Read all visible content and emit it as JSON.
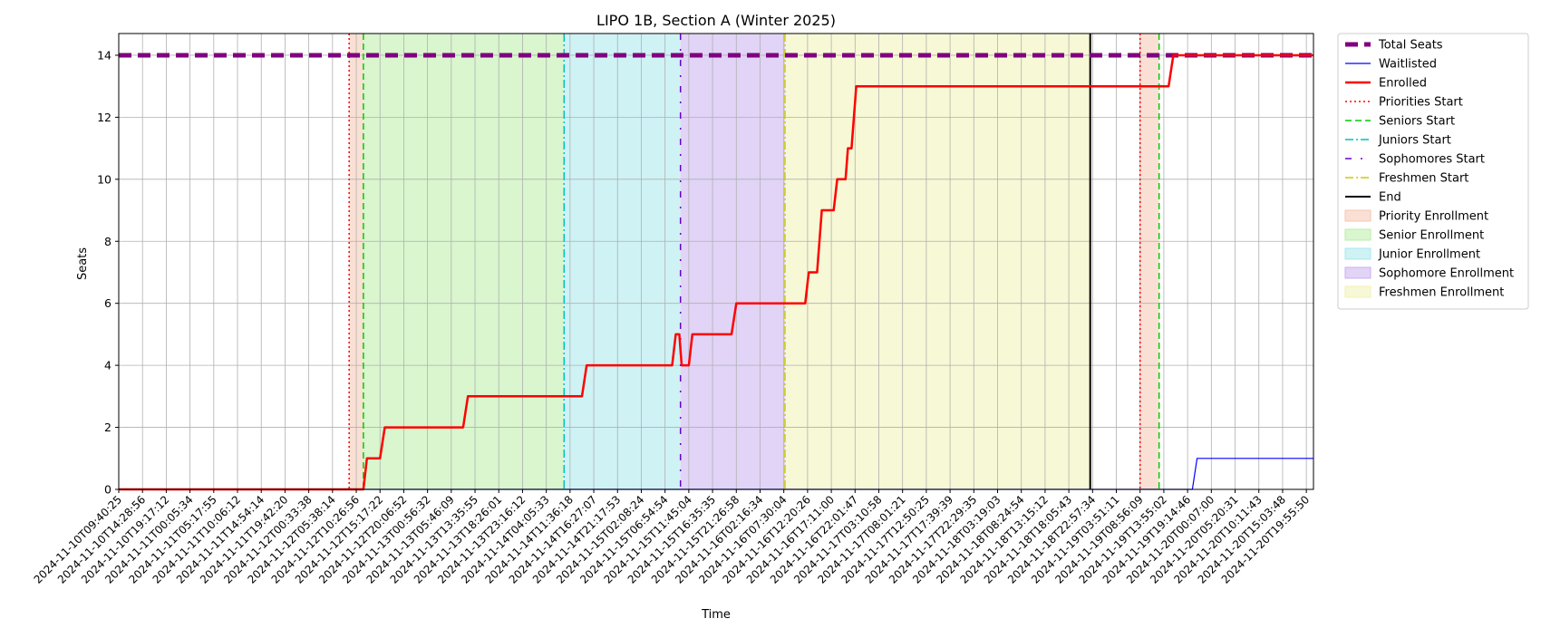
{
  "chart_data": {
    "type": "line",
    "title": "LIPO 1B, Section A (Winter 2025)",
    "xlabel": "Time",
    "ylabel": "Seats",
    "ylim": [
      0,
      14.7
    ],
    "yticks": [
      0,
      2,
      4,
      6,
      8,
      10,
      12,
      14
    ],
    "grid": true,
    "legend_position": "outside-right-top",
    "xticks": [
      "2024-11-10T09:40:25",
      "2024-11-10T14:28:56",
      "2024-11-10T19:17:12",
      "2024-11-11T00:05:34",
      "2024-11-11T05:17:55",
      "2024-11-11T10:06:12",
      "2024-11-11T14:54:14",
      "2024-11-11T19:42:20",
      "2024-11-12T00:33:38",
      "2024-11-12T05:38:14",
      "2024-11-12T10:26:56",
      "2024-11-12T15:17:22",
      "2024-11-12T20:06:52",
      "2024-11-13T00:56:32",
      "2024-11-13T05:46:09",
      "2024-11-13T13:35:55",
      "2024-11-13T18:26:01",
      "2024-11-13T23:16:12",
      "2024-11-14T04:05:33",
      "2024-11-14T11:36:18",
      "2024-11-14T16:27:07",
      "2024-11-14T21:17:53",
      "2024-11-15T02:08:24",
      "2024-11-15T06:54:54",
      "2024-11-15T11:45:04",
      "2024-11-15T16:35:35",
      "2024-11-15T21:26:58",
      "2024-11-16T02:16:34",
      "2024-11-16T07:30:04",
      "2024-11-16T12:20:26",
      "2024-11-16T17:11:00",
      "2024-11-16T22:01:47",
      "2024-11-17T03:10:58",
      "2024-11-17T08:01:21",
      "2024-11-17T12:50:25",
      "2024-11-17T17:39:39",
      "2024-11-17T22:29:35",
      "2024-11-18T03:19:03",
      "2024-11-18T08:24:54",
      "2024-11-18T13:15:12",
      "2024-11-18T18:05:43",
      "2024-11-18T22:57:34",
      "2024-11-19T03:51:11",
      "2024-11-19T08:56:09",
      "2024-11-19T13:55:02",
      "2024-11-19T19:14:46",
      "2024-11-20T00:07:00",
      "2024-11-20T05:20:31",
      "2024-11-20T10:11:43",
      "2024-11-20T15:03:48",
      "2024-11-20T19:55:50"
    ],
    "x_range": [
      0,
      50.3
    ],
    "series": [
      {
        "name": "Total Seats",
        "color": "#800080",
        "style": "dashed-thick",
        "points": [
          [
            0,
            14
          ],
          [
            50.3,
            14
          ]
        ]
      },
      {
        "name": "Waitlisted",
        "color": "#0000ff",
        "style": "solid-thin",
        "points": [
          [
            0,
            0
          ],
          [
            45.2,
            0
          ],
          [
            45.4,
            1
          ],
          [
            50.3,
            1
          ]
        ]
      },
      {
        "name": "Enrolled",
        "color": "#ff0000",
        "style": "solid-thick",
        "points": [
          [
            0,
            0
          ],
          [
            10.3,
            0
          ],
          [
            10.45,
            1
          ],
          [
            11.0,
            1
          ],
          [
            11.2,
            2
          ],
          [
            14.5,
            2
          ],
          [
            14.7,
            3
          ],
          [
            19.5,
            3
          ],
          [
            19.7,
            4
          ],
          [
            23.3,
            4
          ],
          [
            23.45,
            5
          ],
          [
            23.6,
            5
          ],
          [
            23.7,
            4
          ],
          [
            24.0,
            4
          ],
          [
            24.15,
            5
          ],
          [
            25.8,
            5
          ],
          [
            26.0,
            6
          ],
          [
            28.5,
            6
          ],
          [
            28.6,
            6
          ],
          [
            28.9,
            6
          ],
          [
            29.05,
            7
          ],
          [
            29.4,
            7
          ],
          [
            29.6,
            9
          ],
          [
            30.1,
            9
          ],
          [
            30.25,
            10
          ],
          [
            30.6,
            10
          ],
          [
            30.7,
            11
          ],
          [
            30.85,
            11
          ],
          [
            31.05,
            13
          ],
          [
            44.2,
            13
          ],
          [
            44.4,
            14
          ],
          [
            50.3,
            14
          ]
        ]
      }
    ],
    "markers": [
      {
        "name": "Priorities Start",
        "x": 9.7,
        "color": "#ff0000",
        "style": "dotted"
      },
      {
        "name": "Seniors Start",
        "x": 10.3,
        "color": "#00cc00",
        "style": "dashed"
      },
      {
        "name": "Juniors Start",
        "x": 18.75,
        "color": "#00bfbf",
        "style": "dashdot"
      },
      {
        "name": "Sophomores Start",
        "x": 23.65,
        "color": "#6600cc",
        "style": "loose-dashdot"
      },
      {
        "name": "Freshmen Start",
        "x": 28.05,
        "color": "#cccc00",
        "style": "dashdot"
      },
      {
        "name": "End",
        "x": 40.9,
        "color": "#000000",
        "style": "solid"
      },
      {
        "name": "Priorities Start",
        "x": 43.0,
        "color": "#ff0000",
        "style": "dotted",
        "legend": false
      },
      {
        "name": "Seniors Start",
        "x": 43.8,
        "color": "#00cc00",
        "style": "dashed",
        "legend": false
      }
    ],
    "regions": [
      {
        "name": "Priority Enrollment",
        "from": 9.7,
        "to": 10.3,
        "color": "#f5c6b1"
      },
      {
        "name": "Senior Enrollment",
        "from": 10.3,
        "to": 18.75,
        "color": "#b9efa6"
      },
      {
        "name": "Junior Enrollment",
        "from": 18.75,
        "to": 23.65,
        "color": "#a7e8ec"
      },
      {
        "name": "Sophomore Enrollment",
        "from": 23.65,
        "to": 28.05,
        "color": "#c8b1f0"
      },
      {
        "name": "Freshmen Enrollment",
        "from": 28.05,
        "to": 40.9,
        "color": "#f1f2b3"
      },
      {
        "name": "Priority Enrollment",
        "from": 43.0,
        "to": 43.8,
        "color": "#f5c6b1",
        "legend": false
      }
    ],
    "legend": [
      {
        "label": "Total Seats",
        "kind": "line",
        "color": "#800080",
        "style": "dashed-thick"
      },
      {
        "label": "Waitlisted",
        "kind": "line",
        "color": "#0000ff",
        "style": "solid-thin"
      },
      {
        "label": "Enrolled",
        "kind": "line",
        "color": "#ff0000",
        "style": "solid-thick"
      },
      {
        "label": "Priorities Start",
        "kind": "line",
        "color": "#ff0000",
        "style": "dotted"
      },
      {
        "label": "Seniors Start",
        "kind": "line",
        "color": "#00cc00",
        "style": "dashed"
      },
      {
        "label": "Juniors Start",
        "kind": "line",
        "color": "#00bfbf",
        "style": "dashdot"
      },
      {
        "label": "Sophomores Start",
        "kind": "line",
        "color": "#6600cc",
        "style": "loose-dashdot"
      },
      {
        "label": "Freshmen Start",
        "kind": "line",
        "color": "#cccc00",
        "style": "dashdot"
      },
      {
        "label": "End",
        "kind": "line",
        "color": "#000000",
        "style": "solid"
      },
      {
        "label": "Priority Enrollment",
        "kind": "patch",
        "color": "#f5c6b1"
      },
      {
        "label": "Senior Enrollment",
        "kind": "patch",
        "color": "#b9efa6"
      },
      {
        "label": "Junior Enrollment",
        "kind": "patch",
        "color": "#a7e8ec"
      },
      {
        "label": "Sophomore Enrollment",
        "kind": "patch",
        "color": "#c8b1f0"
      },
      {
        "label": "Freshmen Enrollment",
        "kind": "patch",
        "color": "#f1f2b3"
      }
    ]
  }
}
